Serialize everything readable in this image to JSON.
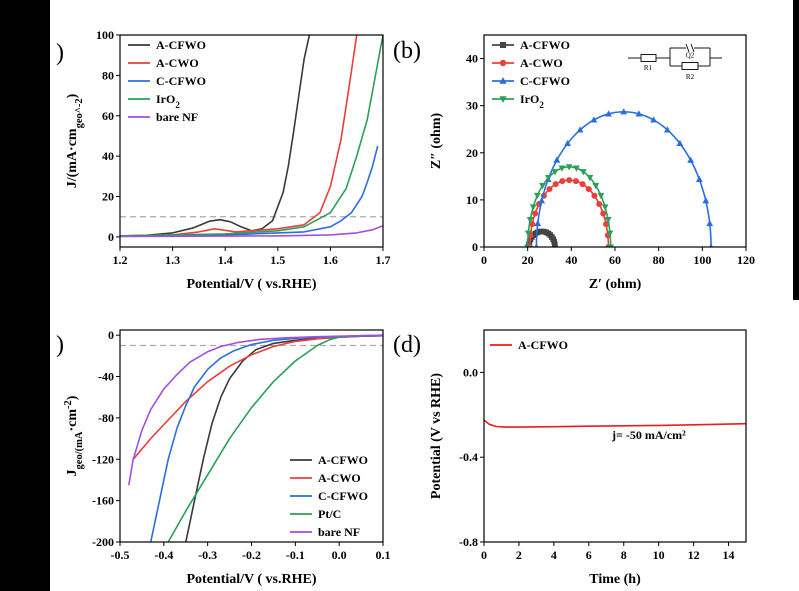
{
  "panels": [
    {
      "label": ")",
      "type": "line",
      "xlabel": "Potential/V ( vs.RHE)",
      "ylabel": "J/(mA·cm_geo^-2)",
      "xlim": [
        1.2,
        1.7
      ],
      "ylim": [
        -5,
        100
      ],
      "xticks": [
        1.2,
        1.3,
        1.4,
        1.5,
        1.6,
        1.7
      ],
      "yticks": [
        0,
        20,
        40,
        60,
        80,
        100
      ],
      "ref_line": 10,
      "legend_position": "top-left",
      "series": [
        {
          "name": "A-CFWO",
          "color": "#3a3a3a",
          "x": [
            1.2,
            1.25,
            1.3,
            1.34,
            1.37,
            1.39,
            1.41,
            1.43,
            1.45,
            1.47,
            1.49,
            1.51,
            1.52,
            1.53,
            1.54,
            1.55,
            1.56
          ],
          "y": [
            0.5,
            0.8,
            2,
            4.5,
            7.8,
            8.5,
            7.5,
            5,
            3,
            4,
            8,
            22,
            35,
            52,
            70,
            88,
            100
          ]
        },
        {
          "name": "A-CWO",
          "color": "#e8403a",
          "x": [
            1.2,
            1.3,
            1.35,
            1.38,
            1.42,
            1.5,
            1.55,
            1.58,
            1.6,
            1.62,
            1.63,
            1.64,
            1.65
          ],
          "y": [
            0.5,
            1,
            2.5,
            4,
            2.5,
            4,
            6,
            12,
            25,
            48,
            65,
            82,
            100
          ]
        },
        {
          "name": "C-CFWO",
          "color": "#2a6fdb",
          "x": [
            1.2,
            1.4,
            1.55,
            1.6,
            1.62,
            1.64,
            1.66,
            1.67,
            1.68,
            1.69
          ],
          "y": [
            0.5,
            1,
            2.5,
            5,
            8,
            12,
            20,
            27,
            35,
            45
          ]
        },
        {
          "name": "IrO_2",
          "color": "#2aa05a",
          "x": [
            1.2,
            1.4,
            1.5,
            1.55,
            1.6,
            1.63,
            1.65,
            1.67,
            1.68,
            1.69,
            1.7
          ],
          "y": [
            0.5,
            1.5,
            3,
            5,
            12,
            24,
            40,
            58,
            72,
            86,
            100
          ]
        },
        {
          "name": "bare NF",
          "color": "#a24fe0",
          "x": [
            1.2,
            1.5,
            1.6,
            1.65,
            1.68,
            1.7
          ],
          "y": [
            0.2,
            0.5,
            1,
            2,
            3.5,
            5.5
          ]
        }
      ]
    },
    {
      "label": "(b)",
      "type": "scatter",
      "xlabel": "Z′ (ohm)",
      "ylabel": "Z″ (ohm)",
      "xlim": [
        0,
        120
      ],
      "ylim": [
        0,
        45
      ],
      "xticks": [
        0,
        20,
        40,
        60,
        80,
        100,
        120
      ],
      "yticks": [
        0,
        10,
        20,
        30,
        40
      ],
      "legend_position": "top-left",
      "circuit_labels": {
        "r1": "R1",
        "q2": "Q2",
        "r2": "R2"
      },
      "series": [
        {
          "name": "A-CFWO",
          "color": "#444444",
          "marker": "square",
          "arc": {
            "start": 20.5,
            "end": 32.5,
            "peak": 3.3
          }
        },
        {
          "name": "A-CWO",
          "color": "#e8403a",
          "marker": "circle",
          "arc": {
            "start": 21,
            "end": 57,
            "peak": 14.2
          }
        },
        {
          "name": "C-CFWO",
          "color": "#2a6fdb",
          "marker": "triangle-up",
          "arc": {
            "start": 24,
            "end": 104,
            "peak": 28.7
          }
        },
        {
          "name": "IrO_2",
          "color": "#2aa05a",
          "marker": "triangle-down",
          "arc": {
            "start": 20,
            "end": 58,
            "peak": 17
          }
        }
      ]
    },
    {
      "label": ")",
      "type": "line",
      "xlabel": "Potential/V ( vs.RHE)",
      "ylabel": "J_geo/(mA·cm^-2)",
      "xlim": [
        -0.5,
        0.1
      ],
      "ylim": [
        -200,
        5
      ],
      "xticks": [
        -0.5,
        -0.4,
        -0.3,
        -0.2,
        -0.1,
        0.0,
        0.1
      ],
      "yticks": [
        0,
        -40,
        -80,
        -120,
        -160,
        -200
      ],
      "ref_line": -10,
      "legend_position": "bottom-right",
      "series": [
        {
          "name": "A-CFWO",
          "color": "#3a3a3a",
          "x": [
            -0.35,
            -0.33,
            -0.31,
            -0.29,
            -0.27,
            -0.25,
            -0.22,
            -0.19,
            -0.15,
            -0.1,
            -0.05,
            0,
            0.05,
            0.1
          ],
          "y": [
            -200,
            -160,
            -120,
            -85,
            -60,
            -42,
            -25,
            -14,
            -8,
            -5,
            -3,
            -2,
            -1,
            -0.5
          ]
        },
        {
          "name": "A-CWO",
          "color": "#e8403a",
          "x": [
            -0.47,
            -0.43,
            -0.39,
            -0.35,
            -0.3,
            -0.25,
            -0.2,
            -0.15,
            -0.1,
            -0.05,
            0,
            0.05,
            0.1
          ],
          "y": [
            -120,
            -100,
            -82,
            -64,
            -45,
            -30,
            -19,
            -11,
            -6,
            -3.5,
            -2,
            -1,
            -0.5
          ]
        },
        {
          "name": "C-CFWO",
          "color": "#2a6fdb",
          "x": [
            -0.43,
            -0.41,
            -0.39,
            -0.37,
            -0.35,
            -0.33,
            -0.3,
            -0.27,
            -0.24,
            -0.2,
            -0.15,
            -0.1,
            -0.05,
            0,
            0.05,
            0.1
          ],
          "y": [
            -200,
            -160,
            -120,
            -90,
            -68,
            -50,
            -33,
            -22,
            -15,
            -9,
            -5,
            -3,
            -2,
            -1.5,
            -1,
            -0.5
          ]
        },
        {
          "name": "Pt/C",
          "color": "#2aa05a",
          "x": [
            -0.39,
            -0.35,
            -0.3,
            -0.25,
            -0.2,
            -0.15,
            -0.1,
            -0.05,
            -0.02,
            0,
            0.02,
            0.05,
            0.1
          ],
          "y": [
            -200,
            -170,
            -135,
            -100,
            -70,
            -45,
            -25,
            -10,
            -4,
            -2,
            -1,
            -0.5,
            0
          ]
        },
        {
          "name": "bare NF",
          "color": "#a24fe0",
          "x": [
            -0.48,
            -0.47,
            -0.45,
            -0.43,
            -0.4,
            -0.37,
            -0.34,
            -0.3,
            -0.27,
            -0.23,
            -0.18,
            -0.12,
            -0.05,
            0,
            0.05,
            0.1
          ],
          "y": [
            -145,
            -120,
            -92,
            -72,
            -52,
            -38,
            -26,
            -16,
            -11,
            -7,
            -4,
            -2.5,
            -1.5,
            -1,
            -0.5,
            0
          ]
        }
      ]
    },
    {
      "label": "(d)",
      "type": "line",
      "xlabel": "Time (h)",
      "ylabel": "Potential (V vs RHE)",
      "xlim": [
        0,
        15
      ],
      "ylim": [
        -0.8,
        0.2
      ],
      "xticks": [
        0,
        2,
        4,
        6,
        8,
        10,
        12,
        14
      ],
      "yticks": [
        0.0,
        -0.4,
        -0.8
      ],
      "annotation": "j= -50 mA/cm²",
      "legend_position": "top-left",
      "series": [
        {
          "name": "A-CFWO",
          "color": "#ee1c1c",
          "x": [
            0,
            0.3,
            0.7,
            1.2,
            2,
            4,
            6,
            8,
            10,
            12,
            14,
            15
          ],
          "y": [
            -0.225,
            -0.245,
            -0.255,
            -0.258,
            -0.258,
            -0.256,
            -0.254,
            -0.252,
            -0.25,
            -0.247,
            -0.244,
            -0.242
          ]
        }
      ]
    }
  ]
}
